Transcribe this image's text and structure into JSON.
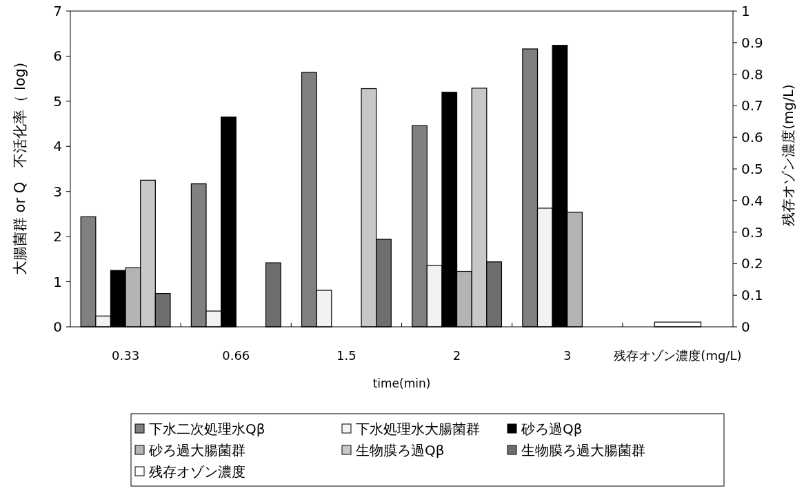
{
  "chart_data": {
    "type": "bar",
    "xlabel": "time(min)",
    "ylabel": "大腸菌群 or Q　不活化率（ log)",
    "y2label": "残存オゾン濃度(mg/L)",
    "categories": [
      "0.33",
      "0.66",
      "1.5",
      "2",
      "3",
      "残存オゾン濃度(mg/L)"
    ],
    "series": [
      {
        "name": "下水二次処理水Qβ",
        "color": "#808080",
        "values": [
          2.44,
          3.17,
          5.64,
          4.46,
          6.16,
          null
        ]
      },
      {
        "name": "下水処理水大腸菌群",
        "color": "#f2f2f2",
        "values": [
          0.24,
          0.35,
          0.81,
          1.36,
          2.63,
          null
        ]
      },
      {
        "name": "砂ろ過Qβ",
        "color": "#000000",
        "values": [
          1.25,
          4.65,
          null,
          5.2,
          6.24,
          null
        ]
      },
      {
        "name": "砂ろ過大腸菌群",
        "color": "#b4b4b4",
        "values": [
          1.31,
          null,
          null,
          1.23,
          2.54,
          null
        ]
      },
      {
        "name": "生物膜ろ過Qβ",
        "color": "#c8c8c8",
        "values": [
          3.25,
          null,
          5.28,
          5.29,
          null,
          null
        ]
      },
      {
        "name": "生物膜ろ過大腸菌群",
        "color": "#6e6e6e",
        "values": [
          0.74,
          1.42,
          1.94,
          1.44,
          null,
          null
        ]
      },
      {
        "name": "残存オゾン濃度",
        "color": "#ffffff",
        "axis": "y2",
        "values": [
          null,
          null,
          null,
          null,
          null,
          0.015
        ]
      }
    ],
    "ylim": [
      0,
      7
    ],
    "yticks": [
      0,
      1,
      2,
      3,
      4,
      5,
      6,
      7
    ],
    "y2lim": [
      0,
      1
    ],
    "y2ticks": [
      0,
      0.1,
      0.2,
      0.3,
      0.4,
      0.5,
      0.6,
      0.7,
      0.8,
      0.9,
      1
    ],
    "grid": false,
    "legend": "bottom"
  }
}
